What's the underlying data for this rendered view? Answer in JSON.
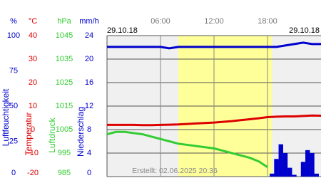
{
  "chart_data": {
    "type": "line",
    "date_left": "29.10.18",
    "date_right": "29.10.18",
    "note": "Erstellt: 02.06.2025 20:36",
    "xlim": [
      0,
      24
    ],
    "xticks": [
      {
        "value": 6,
        "label": "06:00"
      },
      {
        "value": 12,
        "label": "12:00"
      },
      {
        "value": 18,
        "label": "18:00"
      }
    ],
    "daylight": [
      8,
      18.5
    ],
    "grid": true,
    "axes": [
      {
        "unit": "%",
        "label": "Luftfeuchtigkeit",
        "color": "#0000cc",
        "ylim": [
          0,
          100
        ],
        "yticks": [
          0,
          25,
          50,
          75,
          100
        ]
      },
      {
        "unit": "°C",
        "label": "Temperatur",
        "color": "#dd0000",
        "ylim": [
          -20,
          40
        ],
        "yticks": [
          -20,
          -10,
          0,
          10,
          20,
          30,
          40
        ]
      },
      {
        "unit": "hPa",
        "label": "Luftdruck",
        "color": "#33cc33",
        "ylim": [
          985,
          1045
        ],
        "yticks": [
          985,
          995,
          1005,
          1015,
          1025,
          1035,
          1045
        ]
      },
      {
        "unit": "mm/h",
        "label": "Niederschlag",
        "color": "#0000cc",
        "ylim": [
          0,
          24
        ],
        "yticks": [
          0,
          4,
          8,
          12,
          16,
          20,
          24
        ]
      }
    ],
    "x": [
      0,
      1,
      2,
      3,
      4,
      5,
      6,
      7,
      8,
      9,
      10,
      11,
      12,
      13,
      14,
      15,
      16,
      17,
      18,
      19,
      20,
      21,
      22,
      23,
      24
    ],
    "series": [
      {
        "axis": 0,
        "color": "#0000cc",
        "values": [
          92,
          92,
          92,
          92,
          92,
          92,
          92,
          91,
          92,
          92,
          92,
          92,
          92,
          92,
          92,
          92,
          92,
          92,
          92,
          92,
          93,
          94,
          95,
          94,
          94
        ]
      },
      {
        "axis": 1,
        "color": "#dd0000",
        "values": [
          2.0,
          2.0,
          2.0,
          2.0,
          1.9,
          1.9,
          2.0,
          2.1,
          2.2,
          2.4,
          2.6,
          2.8,
          3.0,
          3.3,
          3.6,
          4.0,
          4.4,
          4.8,
          5.3,
          5.5,
          5.6,
          5.6,
          5.8,
          6.0,
          5.9
        ]
      },
      {
        "axis": 2,
        "color": "#33cc33",
        "values": [
          1003.0,
          1004.0,
          1004.0,
          1003.5,
          1003.0,
          1002.0,
          1001.0,
          1000.0,
          999.0,
          998.5,
          998.0,
          997.5,
          997.0,
          996.0,
          995.0,
          994.0,
          993.0,
          991.5,
          989.0,
          null,
          null,
          null,
          null,
          null,
          null
        ]
      }
    ],
    "precipitation": {
      "axis": 3,
      "color": "#0000cc",
      "x": [
        18.5,
        19,
        19.5,
        20,
        20.5,
        21,
        21.5,
        22,
        22.5,
        23,
        23.5
      ],
      "values": [
        0.5,
        3.0,
        5.5,
        4.0,
        1.5,
        0.3,
        0,
        2.5,
        4.5,
        4.0,
        0.5
      ]
    }
  }
}
